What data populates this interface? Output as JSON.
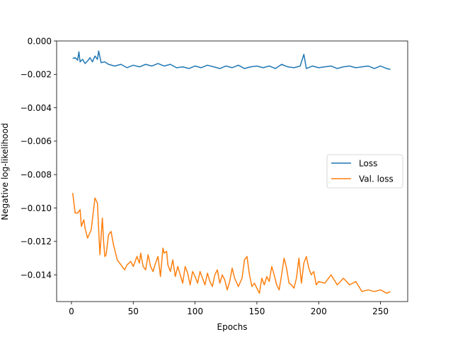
{
  "chart_data": {
    "type": "line",
    "xlabel": "Epochs",
    "ylabel": "Negative log-likelihood",
    "xlim": [
      -12,
      272
    ],
    "ylim": [
      -0.0156,
      0.0
    ],
    "xticks": [
      0,
      50,
      100,
      150,
      200,
      250
    ],
    "xtick_labels": [
      "0",
      "50",
      "100",
      "150",
      "200",
      "250"
    ],
    "yticks": [
      0.0,
      -0.002,
      -0.004,
      -0.006,
      -0.008,
      -0.01,
      -0.012,
      -0.014
    ],
    "ytick_labels": [
      "0.000",
      "−0.002",
      "−0.004",
      "−0.006",
      "−0.008",
      "−0.010",
      "−0.012",
      "−0.014"
    ],
    "grid": false,
    "legend_position": "center-right",
    "series": [
      {
        "name": "Loss",
        "color": "#1f77b4",
        "x": [
          1,
          3,
          5,
          6,
          7,
          9,
          11,
          13,
          15,
          17,
          19,
          21,
          22,
          24,
          27,
          30,
          35,
          40,
          45,
          50,
          55,
          60,
          65,
          70,
          75,
          80,
          85,
          90,
          95,
          100,
          105,
          110,
          115,
          120,
          125,
          130,
          135,
          140,
          145,
          150,
          155,
          160,
          165,
          170,
          175,
          180,
          185,
          188,
          190,
          195,
          200,
          205,
          210,
          215,
          220,
          225,
          230,
          235,
          240,
          245,
          250,
          255,
          258
        ],
        "y": [
          -0.00105,
          -0.001,
          -0.00115,
          -0.00065,
          -0.00125,
          -0.0011,
          -0.00135,
          -0.0012,
          -0.001,
          -0.00125,
          -0.0009,
          -0.0011,
          -0.0006,
          -0.0013,
          -0.00125,
          -0.0014,
          -0.0015,
          -0.0014,
          -0.0016,
          -0.00145,
          -0.00155,
          -0.0014,
          -0.0015,
          -0.00135,
          -0.0015,
          -0.0014,
          -0.0016,
          -0.00155,
          -0.00165,
          -0.0015,
          -0.0016,
          -0.00145,
          -0.00155,
          -0.00165,
          -0.0015,
          -0.0016,
          -0.00145,
          -0.00165,
          -0.00155,
          -0.0015,
          -0.0016,
          -0.0015,
          -0.00165,
          -0.0014,
          -0.00155,
          -0.0016,
          -0.0015,
          -0.0008,
          -0.00165,
          -0.0015,
          -0.0016,
          -0.00155,
          -0.0015,
          -0.00165,
          -0.00155,
          -0.0015,
          -0.0016,
          -0.00155,
          -0.0015,
          -0.00165,
          -0.0015,
          -0.00165,
          -0.0017
        ]
      },
      {
        "name": "Val. loss",
        "color": "#ff7f0e",
        "x": [
          1,
          3,
          5,
          7,
          8,
          10,
          11,
          13,
          16,
          19,
          21,
          23,
          25,
          26,
          27,
          28,
          30,
          32,
          34,
          37,
          40,
          43,
          45,
          48,
          50,
          53,
          55,
          56,
          58,
          60,
          62,
          64,
          66,
          68,
          70,
          72,
          74,
          75,
          77,
          78,
          80,
          82,
          84,
          86,
          88,
          90,
          92,
          94,
          96,
          98,
          100,
          102,
          104,
          106,
          108,
          110,
          112,
          114,
          116,
          118,
          120,
          122,
          124,
          126,
          128,
          130,
          132,
          135,
          138,
          140,
          142,
          144,
          146,
          148,
          150,
          152,
          154,
          156,
          158,
          160,
          162,
          164,
          166,
          168,
          170,
          172,
          174,
          176,
          178,
          180,
          182,
          184,
          186,
          188,
          190,
          192,
          194,
          196,
          198,
          200,
          205,
          210,
          215,
          220,
          225,
          230,
          235,
          240,
          245,
          250,
          255,
          258
        ],
        "y": [
          -0.0091,
          -0.0103,
          -0.0103,
          -0.0101,
          -0.0111,
          -0.0107,
          -0.0112,
          -0.0118,
          -0.0113,
          -0.0094,
          -0.0097,
          -0.0128,
          -0.0106,
          -0.012,
          -0.0129,
          -0.0128,
          -0.0116,
          -0.0114,
          -0.0122,
          -0.0131,
          -0.0134,
          -0.0137,
          -0.0134,
          -0.0132,
          -0.0135,
          -0.0129,
          -0.0133,
          -0.0127,
          -0.0135,
          -0.0137,
          -0.0128,
          -0.0135,
          -0.0138,
          -0.0133,
          -0.0129,
          -0.0141,
          -0.0124,
          -0.0127,
          -0.0126,
          -0.0134,
          -0.0138,
          -0.0131,
          -0.0141,
          -0.0135,
          -0.014,
          -0.0145,
          -0.0135,
          -0.0139,
          -0.0146,
          -0.0138,
          -0.0141,
          -0.0145,
          -0.0138,
          -0.0142,
          -0.0146,
          -0.0139,
          -0.0144,
          -0.0147,
          -0.014,
          -0.0137,
          -0.0145,
          -0.014,
          -0.0143,
          -0.0149,
          -0.0144,
          -0.0136,
          -0.0142,
          -0.0147,
          -0.0142,
          -0.0131,
          -0.0129,
          -0.014,
          -0.0147,
          -0.0145,
          -0.0148,
          -0.0151,
          -0.0142,
          -0.0146,
          -0.0141,
          -0.0144,
          -0.0135,
          -0.014,
          -0.0146,
          -0.0149,
          -0.014,
          -0.013,
          -0.0136,
          -0.0145,
          -0.0146,
          -0.0148,
          -0.0142,
          -0.013,
          -0.0145,
          -0.0133,
          -0.0129,
          -0.0136,
          -0.014,
          -0.0138,
          -0.0146,
          -0.0144,
          -0.0145,
          -0.014,
          -0.0146,
          -0.0142,
          -0.0146,
          -0.0144,
          -0.015,
          -0.0149,
          -0.015,
          -0.0149,
          -0.0151,
          -0.015
        ]
      }
    ]
  }
}
